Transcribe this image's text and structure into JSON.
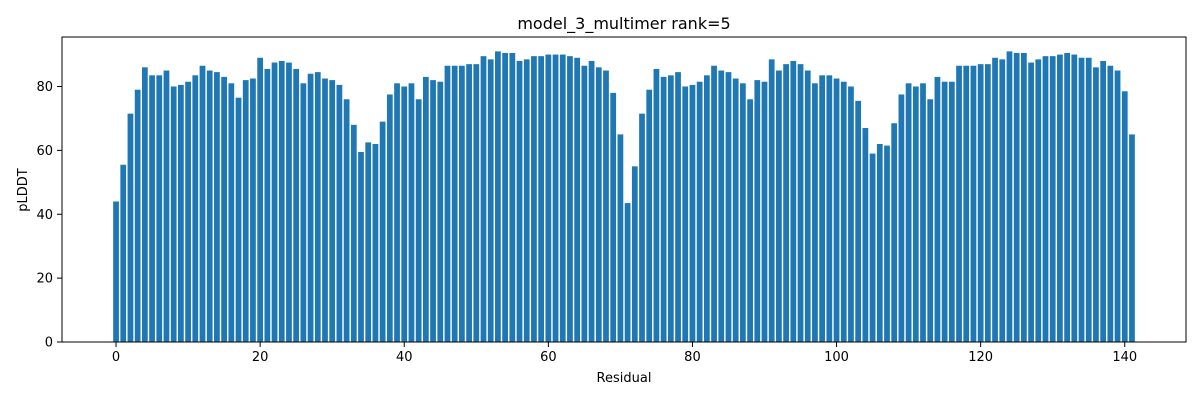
{
  "chart_data": {
    "type": "bar",
    "title": "model_3_multimer rank=5",
    "xlabel": "Residual",
    "ylabel": "pLDDT",
    "bar_color": "#1f77b4",
    "xlim": [
      -7.5,
      148.5
    ],
    "ylim": [
      0,
      95.5
    ],
    "xticks": [
      0,
      20,
      40,
      60,
      80,
      100,
      120,
      140
    ],
    "yticks": [
      0,
      20,
      40,
      60,
      80
    ],
    "grid": false,
    "legend": "none",
    "x": [
      0,
      1,
      2,
      3,
      4,
      5,
      6,
      7,
      8,
      9,
      10,
      11,
      12,
      13,
      14,
      15,
      16,
      17,
      18,
      19,
      20,
      21,
      22,
      23,
      24,
      25,
      26,
      27,
      28,
      29,
      30,
      31,
      32,
      33,
      34,
      35,
      36,
      37,
      38,
      39,
      40,
      41,
      42,
      43,
      44,
      45,
      46,
      47,
      48,
      49,
      50,
      51,
      52,
      53,
      54,
      55,
      56,
      57,
      58,
      59,
      60,
      61,
      62,
      63,
      64,
      65,
      66,
      67,
      68,
      69,
      70,
      71,
      72,
      73,
      74,
      75,
      76,
      77,
      78,
      79,
      80,
      81,
      82,
      83,
      84,
      85,
      86,
      87,
      88,
      89,
      90,
      91,
      92,
      93,
      94,
      95,
      96,
      97,
      98,
      99,
      100,
      101,
      102,
      103,
      104,
      105,
      106,
      107,
      108,
      109,
      110,
      111,
      112,
      113,
      114,
      115,
      116,
      117,
      118,
      119,
      120,
      121,
      122,
      123,
      124,
      125,
      126,
      127,
      128,
      129,
      130,
      131,
      132,
      133,
      134,
      135,
      136,
      137,
      138,
      139,
      140,
      141
    ],
    "values": [
      44,
      55.5,
      71.5,
      79,
      86,
      83.5,
      83.5,
      85,
      80,
      80.5,
      81.5,
      83.5,
      86.5,
      85,
      84.5,
      83,
      81,
      76.5,
      82,
      82.5,
      89,
      85.5,
      87.5,
      88,
      87.5,
      85.5,
      81,
      84,
      84.5,
      82.5,
      82,
      80.5,
      76,
      68,
      59.5,
      62.5,
      62,
      69,
      77.5,
      81,
      80,
      81,
      76,
      83,
      82,
      81.5,
      86.5,
      86.5,
      86.5,
      87,
      87,
      89.5,
      88.5,
      91,
      90.5,
      90.5,
      88,
      88.5,
      89.5,
      89.5,
      90,
      90,
      90,
      89.5,
      89,
      86.5,
      88,
      86,
      85,
      78,
      65,
      43.5,
      55,
      71.5,
      79,
      85.5,
      83,
      83.5,
      84.5,
      80,
      80.5,
      81.5,
      83.5,
      86.5,
      85,
      84.5,
      82.5,
      81,
      76,
      82,
      81.5,
      88.5,
      85,
      87,
      88,
      87,
      85,
      81,
      83.5,
      83.5,
      82.5,
      81.5,
      80,
      75.5,
      67,
      59,
      62,
      61.5,
      68.5,
      77.5,
      81,
      80,
      81,
      76,
      83,
      81.5,
      81.5,
      86.5,
      86.5,
      86.5,
      87,
      87,
      89,
      88.5,
      91,
      90.5,
      90.5,
      87.5,
      88.5,
      89.5,
      89.5,
      90,
      90.5,
      90,
      89,
      89,
      86,
      88,
      86.5,
      85,
      78.5,
      65
    ]
  }
}
